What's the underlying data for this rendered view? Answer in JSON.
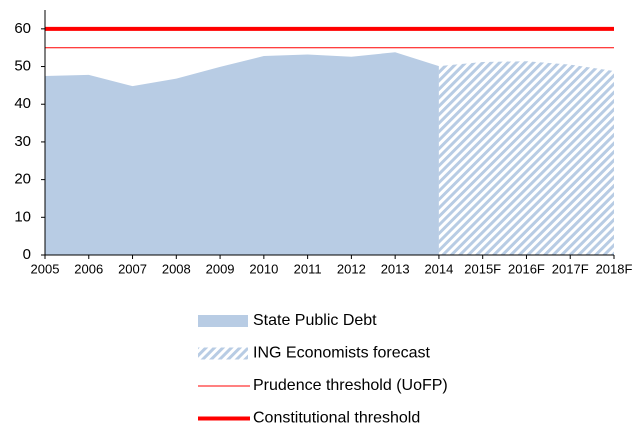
{
  "chart_data": {
    "type": "area",
    "categories": [
      "2005",
      "2006",
      "2007",
      "2008",
      "2009",
      "2010",
      "2011",
      "2012",
      "2013",
      "2014",
      "2015F",
      "2016F",
      "2017F",
      "2018F"
    ],
    "series": [
      {
        "name": "State Public Debt",
        "color": "#b8cce4",
        "style": "area",
        "values": [
          47.5,
          47.8,
          44.8,
          46.8,
          49.9,
          52.8,
          53.2,
          52.6,
          53.8,
          50.1,
          null,
          null,
          null,
          null
        ]
      },
      {
        "name": "ING Economists forecast",
        "color": "#b8cce4",
        "style": "hatched",
        "values": [
          null,
          null,
          null,
          null,
          null,
          null,
          null,
          null,
          null,
          50.1,
          51.2,
          51.4,
          50.5,
          48.8
        ]
      },
      {
        "name": "Prudence threshold (UoFP)",
        "color": "#ff0000",
        "style": "thin-line",
        "values": [
          55,
          55,
          55,
          55,
          55,
          55,
          55,
          55,
          55,
          55,
          55,
          55,
          55,
          55
        ]
      },
      {
        "name": "Constitutional threshold",
        "color": "#ff0000",
        "style": "thick-line",
        "values": [
          60,
          60,
          60,
          60,
          60,
          60,
          60,
          60,
          60,
          60,
          60,
          60,
          60,
          60
        ]
      }
    ],
    "ylim": [
      0,
      65
    ],
    "yticks": [
      0,
      10,
      20,
      30,
      40,
      50,
      60
    ],
    "legend": "bottom"
  }
}
